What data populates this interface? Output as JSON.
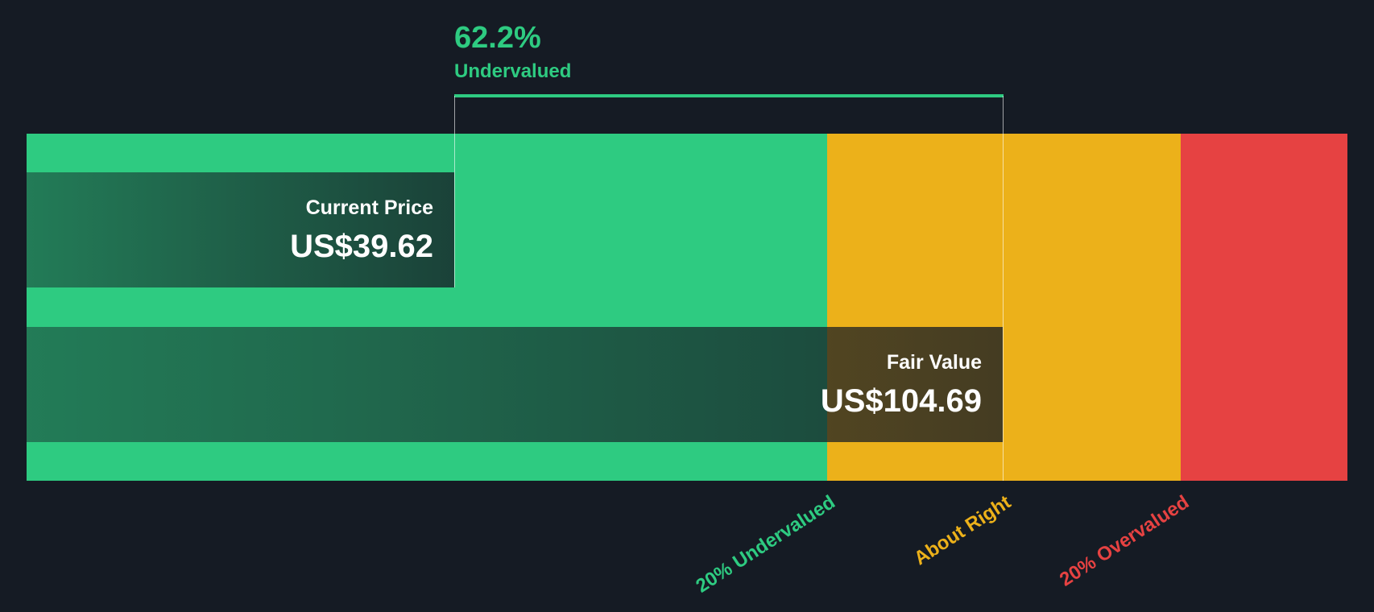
{
  "chart_data": {
    "type": "bar",
    "title": "",
    "current_price": {
      "label": "Current Price",
      "value": 39.62,
      "display": "US$39.62"
    },
    "fair_value": {
      "label": "Fair Value",
      "value": 104.69,
      "display": "US$104.69"
    },
    "difference": {
      "percent": "62.2%",
      "label": "Undervalued"
    },
    "zones": [
      {
        "name": "20% Undervalued",
        "color": "#2ecb81"
      },
      {
        "name": "About Right",
        "color": "#ecb11a"
      },
      {
        "name": "20% Overvalued",
        "color": "#e64242"
      }
    ],
    "thresholds": [
      {
        "label": "20% Undervalued",
        "value": 83.75
      },
      {
        "label": "About Right",
        "value": 104.69
      },
      {
        "label": "20% Overvalued",
        "value": 125.63
      }
    ]
  },
  "colors": {
    "background": "#151b24",
    "accent": "#2ecb81"
  }
}
